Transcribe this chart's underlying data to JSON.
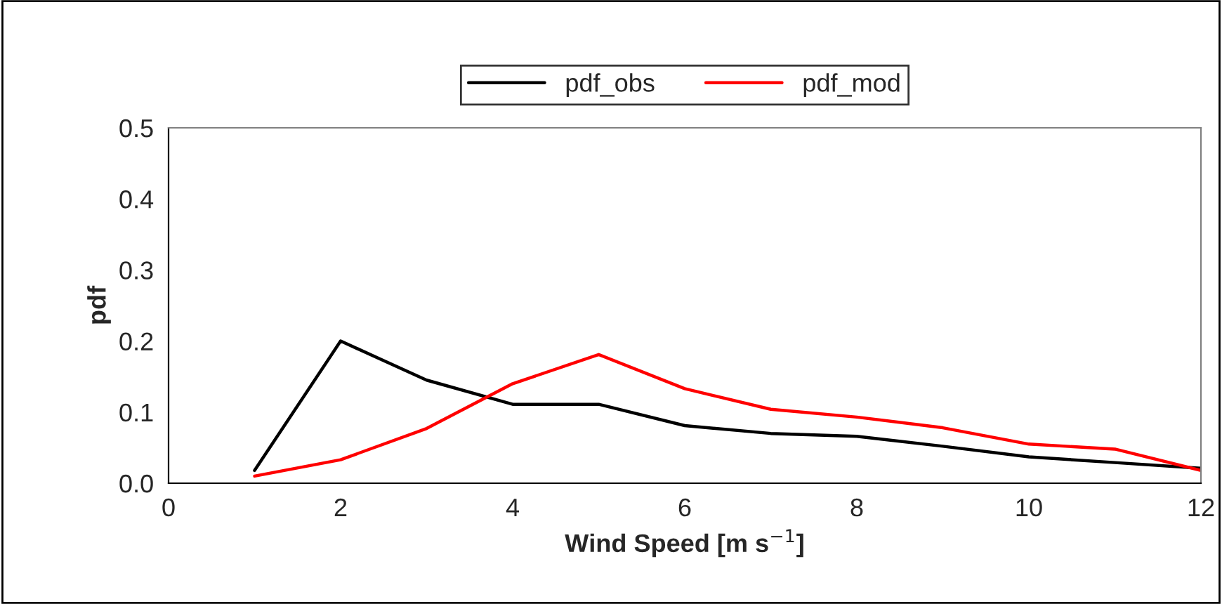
{
  "chart_data": {
    "type": "line",
    "xlabel": "Wind Speed [m s$^{−1}$]",
    "ylabel": "pdf",
    "x": [
      1,
      2,
      3,
      4,
      5,
      6,
      7,
      8,
      9,
      10,
      11,
      12
    ],
    "series": [
      {
        "name": "pdf_obs",
        "color": "#000000",
        "values": [
          0.018,
          0.2,
          0.145,
          0.111,
          0.111,
          0.081,
          0.07,
          0.066,
          0.052,
          0.037,
          0.029,
          0.021
        ]
      },
      {
        "name": "pdf_mod",
        "color": "#ff0000",
        "values": [
          0.01,
          0.033,
          0.077,
          0.14,
          0.181,
          0.133,
          0.104,
          0.093,
          0.078,
          0.055,
          0.048,
          0.018
        ]
      }
    ],
    "xlim": [
      0,
      12
    ],
    "xticks": [
      0,
      2,
      4,
      6,
      8,
      10,
      12
    ],
    "ylim": [
      0,
      0.5
    ],
    "yticks": [
      {
        "value": 0,
        "label": "0.0"
      },
      {
        "value": 0.1,
        "label": "0.1"
      },
      {
        "value": 0.2,
        "label": "0.2"
      },
      {
        "value": 0.3,
        "label": "0.3"
      },
      {
        "value": 0.4,
        "label": "0.4"
      },
      {
        "value": 0.5,
        "label": "0.5"
      }
    ],
    "legend": "top",
    "grid": false,
    "marker": "none",
    "line_style": "solid"
  }
}
